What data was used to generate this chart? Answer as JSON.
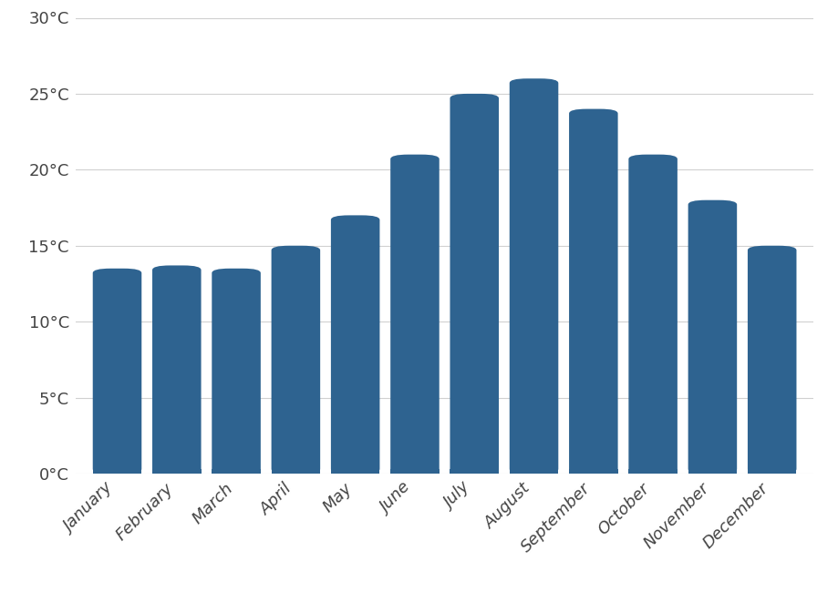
{
  "categories": [
    "January",
    "February",
    "March",
    "April",
    "May",
    "June",
    "July",
    "August",
    "September",
    "October",
    "November",
    "December"
  ],
  "values": [
    13.5,
    13.7,
    13.5,
    15.0,
    17.0,
    21.0,
    25.0,
    26.0,
    24.0,
    21.0,
    18.0,
    15.0
  ],
  "bar_color": "#2e6390",
  "background_color": "#ffffff",
  "ylim": [
    0,
    30
  ],
  "yticks": [
    0,
    5,
    10,
    15,
    20,
    25,
    30
  ],
  "ytick_labels": [
    "0°C",
    "5°C",
    "10°C",
    "15°C",
    "20°C",
    "25°C",
    "30°C"
  ],
  "grid_color": "#d0d0d0",
  "tick_label_fontsize": 13,
  "bar_width": 0.82
}
